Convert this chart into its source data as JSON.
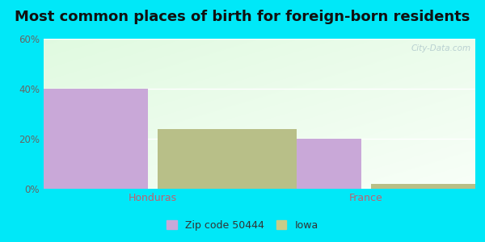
{
  "title": "Most common places of birth for foreign-born residents",
  "categories": [
    "Honduras",
    "France"
  ],
  "series": {
    "Zip code 50444": [
      40,
      20
    ],
    "Iowa": [
      24,
      2
    ]
  },
  "bar_colors": {
    "Zip code 50444": "#c9a8d8",
    "Iowa": "#b8bf88"
  },
  "ylim": [
    0,
    60
  ],
  "yticks": [
    0,
    20,
    40,
    60
  ],
  "ytick_labels": [
    "0%",
    "20%",
    "40%",
    "60%"
  ],
  "outer_bg": "#00e8f8",
  "title_fontsize": 13,
  "x_label_color": "#c06070",
  "watermark": "City-Data.com",
  "bar_width": 0.28,
  "legend_marker_color_zip": "#c9a8d8",
  "legend_marker_color_iowa": "#c8cc88"
}
